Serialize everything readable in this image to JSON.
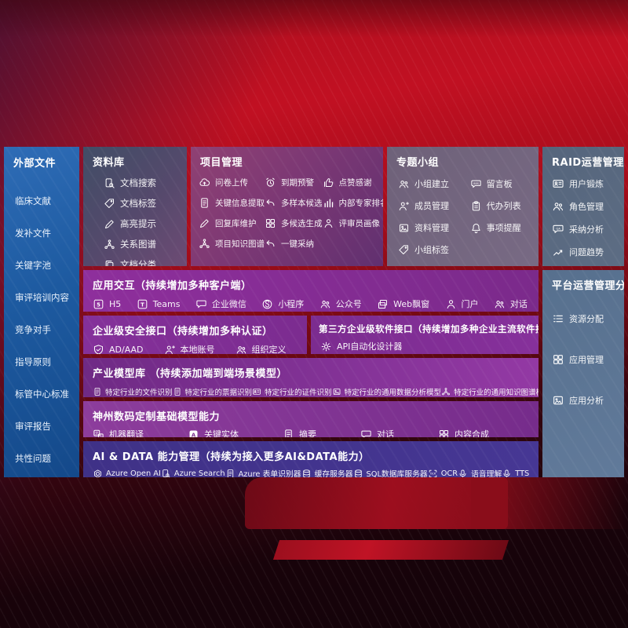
{
  "sidebar": {
    "title": "外部文件",
    "items": [
      {
        "label": "临床文献"
      },
      {
        "label": "发补文件"
      },
      {
        "label": "关键字池"
      },
      {
        "label": "审评培训内容"
      },
      {
        "label": "竞争对手"
      },
      {
        "label": "指导原则"
      },
      {
        "label": "标管中心标准"
      },
      {
        "label": "审评报告"
      },
      {
        "label": "共性问题"
      }
    ]
  },
  "panels": {
    "library": {
      "title": "资料库",
      "items": [
        {
          "icon": "document-search-icon",
          "label": "文档搜索"
        },
        {
          "icon": "tag-icon",
          "label": "文档标签"
        },
        {
          "icon": "highlighter-icon",
          "label": "高亮提示"
        },
        {
          "icon": "relation-graph-icon",
          "label": "关系图谱"
        },
        {
          "icon": "document-stack-icon",
          "label": "文档分类"
        }
      ]
    },
    "project": {
      "title": "项目管理",
      "items": [
        {
          "icon": "cloud-upload-icon",
          "label": "问卷上传"
        },
        {
          "icon": "alarm-icon",
          "label": "到期预警"
        },
        {
          "icon": "thumbs-up-icon",
          "label": "点赞感谢"
        },
        {
          "icon": "document-extract-icon",
          "label": "关键信息提取"
        },
        {
          "icon": "undo-arrow-icon",
          "label": "多样本候选"
        },
        {
          "icon": "ranking-chart-icon",
          "label": "内部专家排名"
        },
        {
          "icon": "pen-icon",
          "label": "回复库维护"
        },
        {
          "icon": "grid-icon",
          "label": "多候选生成"
        },
        {
          "icon": "person-icon",
          "label": "评审员画像"
        },
        {
          "icon": "knowledge-graph-icon",
          "label": "项目知识图谱"
        },
        {
          "icon": "adopt-arrow-icon",
          "label": "一键采纳"
        }
      ]
    },
    "group": {
      "title": "专题小组",
      "items": [
        {
          "icon": "people-icon",
          "label": "小组建立"
        },
        {
          "icon": "bbs-board-icon",
          "label": "留言板"
        },
        {
          "icon": "member-manage-icon",
          "label": "成员管理"
        },
        {
          "icon": "todo-list-icon",
          "label": "代办列表"
        },
        {
          "icon": "album-icon",
          "label": "资料管理"
        },
        {
          "icon": "bell-icon",
          "label": "事项提醒"
        },
        {
          "icon": "tags-icon",
          "label": "小组标签"
        }
      ]
    },
    "raid": {
      "title": "RAID运营管理分析",
      "items": [
        {
          "icon": "id-card-icon",
          "label": "用户锻炼"
        },
        {
          "icon": "roles-icon",
          "label": "角色管理"
        },
        {
          "icon": "qa-chat-icon",
          "label": "采纳分析"
        },
        {
          "icon": "trend-chart-icon",
          "label": "问题趋势"
        }
      ]
    },
    "platform": {
      "title": "平台运营管理分析",
      "items": [
        {
          "icon": "resource-list-icon",
          "label": "资源分配"
        },
        {
          "icon": "app-grid-icon",
          "label": "应用管理"
        },
        {
          "icon": "app-analysis-icon",
          "label": "应用分析"
        }
      ]
    },
    "interaction": {
      "title": "应用交互（持续增加多种客户端）",
      "items": [
        {
          "icon": "html5-icon",
          "label": "H5"
        },
        {
          "icon": "teams-icon",
          "label": "Teams"
        },
        {
          "icon": "wechat-work-icon",
          "label": "企业微信"
        },
        {
          "icon": "miniprogram-icon",
          "label": "小程序"
        },
        {
          "icon": "official-account-icon",
          "label": "公众号"
        },
        {
          "icon": "web-popup-icon",
          "label": "Web飘窗"
        },
        {
          "icon": "portal-icon",
          "label": "门户"
        },
        {
          "icon": "dialog-icon",
          "label": "对话"
        }
      ]
    },
    "security": {
      "title": "企业级安全接口（持续增加多种认证）",
      "items": [
        {
          "icon": "ad-shield-icon",
          "label": "AD/AAD"
        },
        {
          "icon": "local-account-icon",
          "label": "本地账号"
        },
        {
          "icon": "org-define-icon",
          "label": "组织定义"
        }
      ]
    },
    "thirdparty": {
      "title": "第三方企业级软件接口（持续增加多种企业主流软件接口）",
      "items": [
        {
          "icon": "api-designer-icon",
          "label": "API自动化设计器"
        }
      ]
    },
    "models": {
      "title": "产业模型库 （持续添加端到端场景模型）",
      "items": [
        {
          "icon": "file-recognition-icon",
          "label": "特定行业的文件识别"
        },
        {
          "icon": "receipt-recognition-icon",
          "label": "特定行业的票据识别"
        },
        {
          "icon": "card-recognition-icon",
          "label": "特定行业的证件识别"
        },
        {
          "icon": "data-analysis-model-icon",
          "label": "特定行业的通用数据分析模型"
        },
        {
          "icon": "knowledge-graph-model-icon",
          "label": "特定行业的通用知识图谱模型"
        }
      ]
    },
    "foundation": {
      "title": "神州数码定制基础模型能力",
      "items": [
        {
          "icon": "translate-icon",
          "label": "机器翻译"
        },
        {
          "icon": "entity-icon",
          "label": "关键实体"
        },
        {
          "icon": "summary-icon",
          "label": "摘要"
        },
        {
          "icon": "chat-icon",
          "label": "对话"
        },
        {
          "icon": "compose-icon",
          "label": "内容合成"
        }
      ]
    },
    "aidata": {
      "title": "AI & DATA 能力管理（持续为接入更多AI&DATA能力）",
      "items": [
        {
          "icon": "openai-icon",
          "label": "Azure Open AI"
        },
        {
          "icon": "azure-search-icon",
          "label": "Azure Search"
        },
        {
          "icon": "form-recognizer-icon",
          "label": "Azure 表单识别器"
        },
        {
          "icon": "cache-server-icon",
          "label": "缓存服务器"
        },
        {
          "icon": "sql-database-icon",
          "label": "SQL数据库服务器"
        },
        {
          "icon": "ocr-icon",
          "label": "OCR"
        },
        {
          "icon": "speech-icon",
          "label": "语音理解"
        },
        {
          "icon": "tts-icon",
          "label": "TTS"
        }
      ]
    }
  },
  "colors": {
    "background_red": "#c11022",
    "sidebar_blue": "#1d5aa0",
    "purple_row": "#8e2f9c",
    "indigo_row": "#3f3187",
    "slate_panel": "#5d7392"
  }
}
